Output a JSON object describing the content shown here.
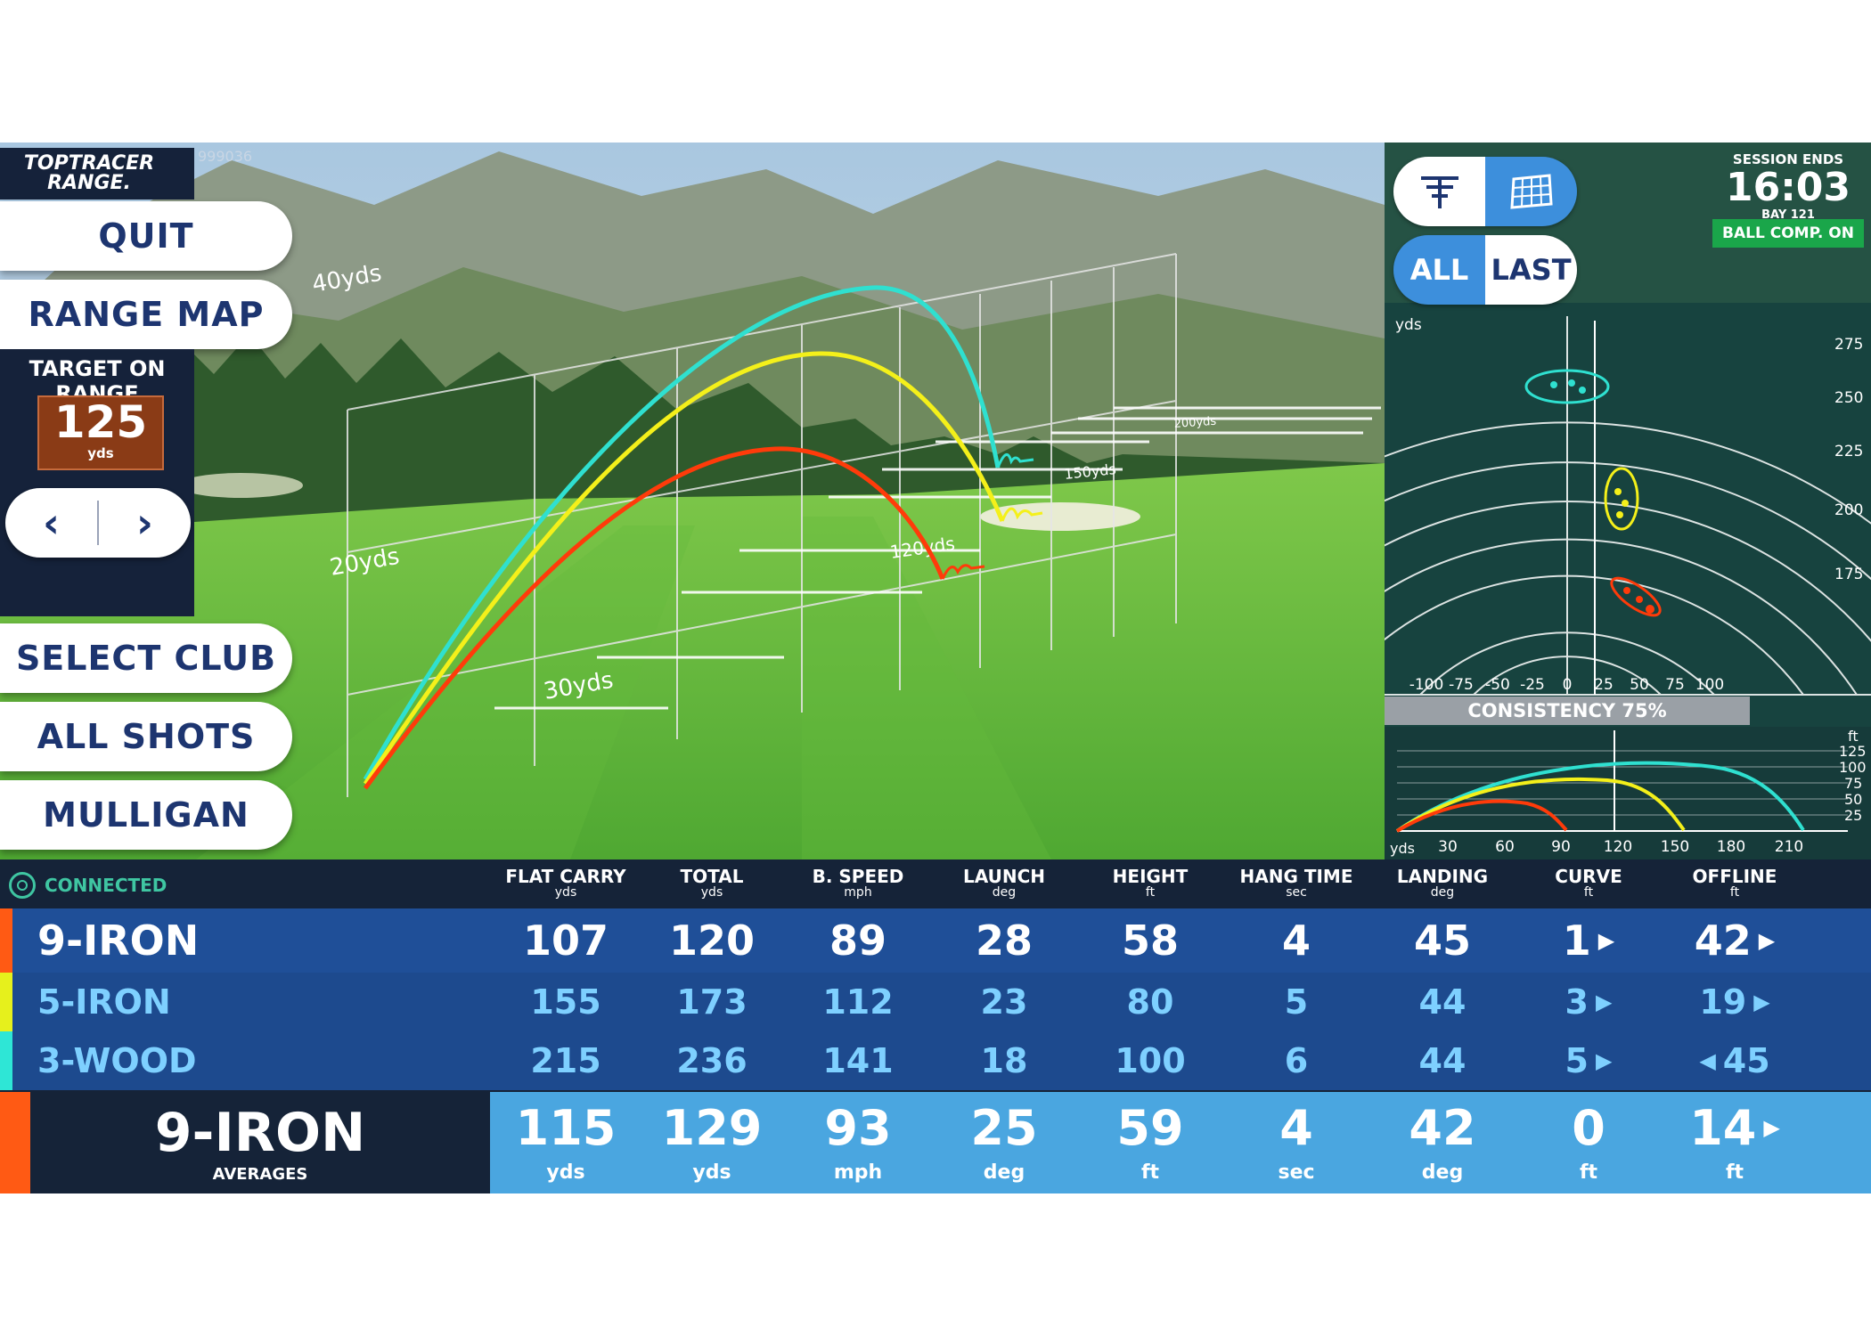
{
  "app": {
    "logo_line1": "TOPTRACER",
    "logo_line2": "RANGE.",
    "bay_code": "999036"
  },
  "menu": {
    "quit": "QUIT",
    "range_map": "RANGE MAP",
    "select_club": "SELECT CLUB",
    "all_shots": "ALL SHOTS",
    "mulligan": "MULLIGAN"
  },
  "target": {
    "title": "TARGET ON RANGE",
    "value": "125",
    "unit": "yds",
    "prev_icon": "‹",
    "next_icon": "›"
  },
  "scene": {
    "height_labels": [
      "40yds",
      "20yds"
    ],
    "distance_labels": [
      "30yds",
      "120yds",
      "150yds",
      "200yds"
    ],
    "shots": [
      {
        "club": "9-IRON",
        "color": "#ff3b0a"
      },
      {
        "club": "5-IRON",
        "color": "#f4f01a"
      },
      {
        "club": "3-WOOD",
        "color": "#2fe0d0"
      }
    ]
  },
  "panel": {
    "session_label": "SESSION ENDS",
    "session_time": "16:03",
    "bay": "BAY 121",
    "ball_comp": "BALL COMP. ON",
    "view_toggle": [
      "tracer-view-icon",
      "grid-view-icon"
    ],
    "shot_toggle": {
      "all": "ALL",
      "last": "LAST"
    },
    "map_unit": "yds",
    "arc_labels": [
      "275",
      "250",
      "225",
      "200",
      "175"
    ],
    "x_axis_labels": [
      "-100",
      "-75",
      "-50",
      "-25",
      "0",
      "25",
      "50",
      "75",
      "100"
    ],
    "consistency": "CONSISTENCY 75%",
    "side_unit": "ft",
    "side_y_labels": [
      "125",
      "100",
      "75",
      "50",
      "25"
    ],
    "side_x_unit": "yds",
    "side_x_labels": [
      "30",
      "60",
      "90",
      "120",
      "150",
      "180",
      "210"
    ]
  },
  "table": {
    "connected": "CONNECTED",
    "columns": [
      {
        "label": "FLAT CARRY",
        "unit": "yds"
      },
      {
        "label": "TOTAL",
        "unit": "yds"
      },
      {
        "label": "B. SPEED",
        "unit": "mph"
      },
      {
        "label": "LAUNCH",
        "unit": "deg"
      },
      {
        "label": "HEIGHT",
        "unit": "ft"
      },
      {
        "label": "HANG TIME",
        "unit": "sec"
      },
      {
        "label": "LANDING",
        "unit": "deg"
      },
      {
        "label": "CURVE",
        "unit": "ft"
      },
      {
        "label": "OFFLINE",
        "unit": "ft"
      }
    ],
    "rows": [
      {
        "club": "9-IRON",
        "color": "#ff5a14",
        "values": [
          "107",
          "120",
          "89",
          "28",
          "58",
          "4",
          "45",
          "1",
          "42"
        ],
        "curve_dir": "right",
        "offline_dir": "right"
      },
      {
        "club": "5-IRON",
        "color": "#e6f01c",
        "values": [
          "155",
          "173",
          "112",
          "23",
          "80",
          "5",
          "44",
          "3",
          "19"
        ],
        "curve_dir": "right",
        "offline_dir": "right"
      },
      {
        "club": "3-WOOD",
        "color": "#2ee6d6",
        "values": [
          "215",
          "236",
          "141",
          "18",
          "100",
          "6",
          "44",
          "5",
          "45"
        ],
        "curve_dir": "right",
        "offline_dir": "left"
      }
    ],
    "average": {
      "club": "9-IRON",
      "label": "AVERAGES",
      "color": "#ff5a14",
      "values": [
        "115",
        "129",
        "93",
        "25",
        "59",
        "4",
        "42",
        "0",
        "14"
      ],
      "units": [
        "yds",
        "yds",
        "mph",
        "deg",
        "ft",
        "sec",
        "deg",
        "ft",
        "ft"
      ],
      "offline_dir": "right"
    }
  }
}
